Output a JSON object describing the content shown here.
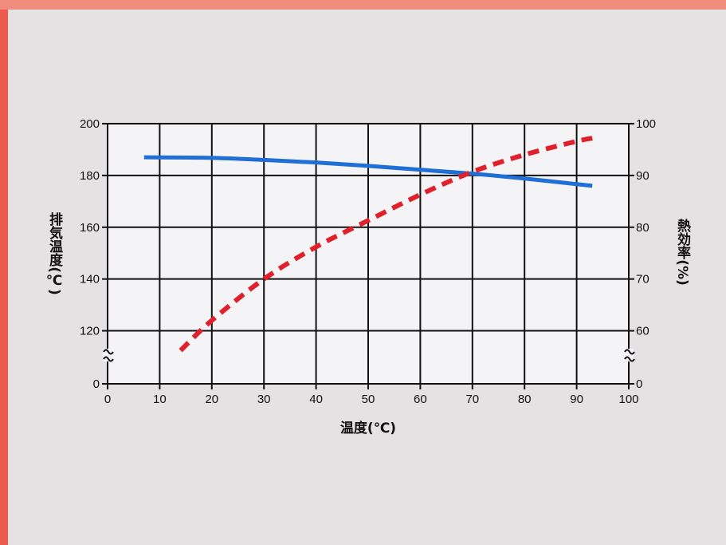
{
  "chart_data": {
    "type": "line",
    "title": "",
    "xlabel": "温度(℃)",
    "ylabel_left": "排気温度(℃)",
    "ylabel_right": "熱効率(%)",
    "xlim": [
      0,
      100
    ],
    "x_ticks": [
      "0",
      "10",
      "20",
      "30",
      "40",
      "50",
      "60",
      "70",
      "80",
      "90",
      "100"
    ],
    "y_left_ticks": [
      "0",
      "120",
      "140",
      "160",
      "180",
      "200"
    ],
    "y_right_ticks": [
      "0",
      "60",
      "70",
      "80",
      "90",
      "100"
    ],
    "y_left_range": [
      110,
      200
    ],
    "y_right_range": [
      55,
      100
    ],
    "axis_break": "between 0 and 120 (left) / 0 and 60 (right)",
    "grid": true,
    "series": [
      {
        "axis": "left",
        "style": "solid",
        "color": "#1f6fd6",
        "x": [
          7,
          20,
          30,
          40,
          50,
          60,
          70,
          80,
          93
        ],
        "y": [
          187,
          186.8,
          186,
          185,
          183.7,
          182.2,
          180.7,
          178.8,
          176
        ]
      },
      {
        "axis": "right",
        "style": "dashed",
        "color": "#e0202a",
        "x": [
          14,
          20,
          30,
          40,
          50,
          60,
          70,
          80,
          90,
          93
        ],
        "y": [
          56.2,
          62,
          70,
          76.2,
          81.3,
          86.3,
          90.7,
          94,
          96.6,
          97.2
        ]
      }
    ]
  }
}
